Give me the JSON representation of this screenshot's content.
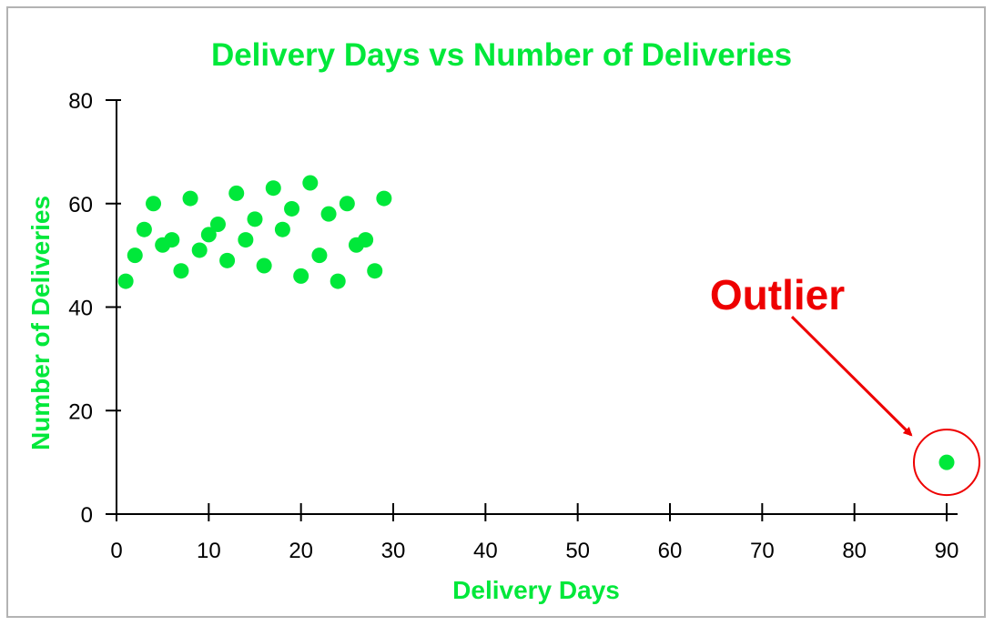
{
  "colors": {
    "accent": "#00e83a",
    "annotation": "#ee0000",
    "axis": "#000000",
    "frame": "#b3b3b3"
  },
  "chart_data": {
    "type": "scatter",
    "title": "Delivery Days vs Number of Deliveries",
    "xlabel": "Delivery Days",
    "ylabel": "Number of Deliveries",
    "xlim": [
      0,
      90
    ],
    "ylim": [
      0,
      80
    ],
    "xticks": [
      0,
      10,
      20,
      30,
      40,
      50,
      60,
      70,
      80,
      90
    ],
    "yticks": [
      0,
      20,
      40,
      60,
      80
    ],
    "grid": false,
    "legend": "none",
    "series": [
      {
        "x": [
          1,
          2,
          3,
          4,
          5,
          6,
          7,
          8,
          9,
          10,
          11,
          12,
          13,
          14,
          15,
          16,
          17,
          18,
          19,
          20,
          21,
          22,
          23,
          24,
          25,
          26,
          27,
          28,
          29,
          90
        ],
        "y": [
          45,
          50,
          55,
          60,
          52,
          53,
          47,
          61,
          51,
          54,
          56,
          49,
          62,
          53,
          57,
          48,
          63,
          55,
          59,
          46,
          64,
          50,
          58,
          45,
          60,
          52,
          53,
          47,
          61,
          10
        ]
      }
    ],
    "annotations": [
      {
        "text": "Outlier",
        "target_x": 90,
        "target_y": 10
      }
    ]
  }
}
